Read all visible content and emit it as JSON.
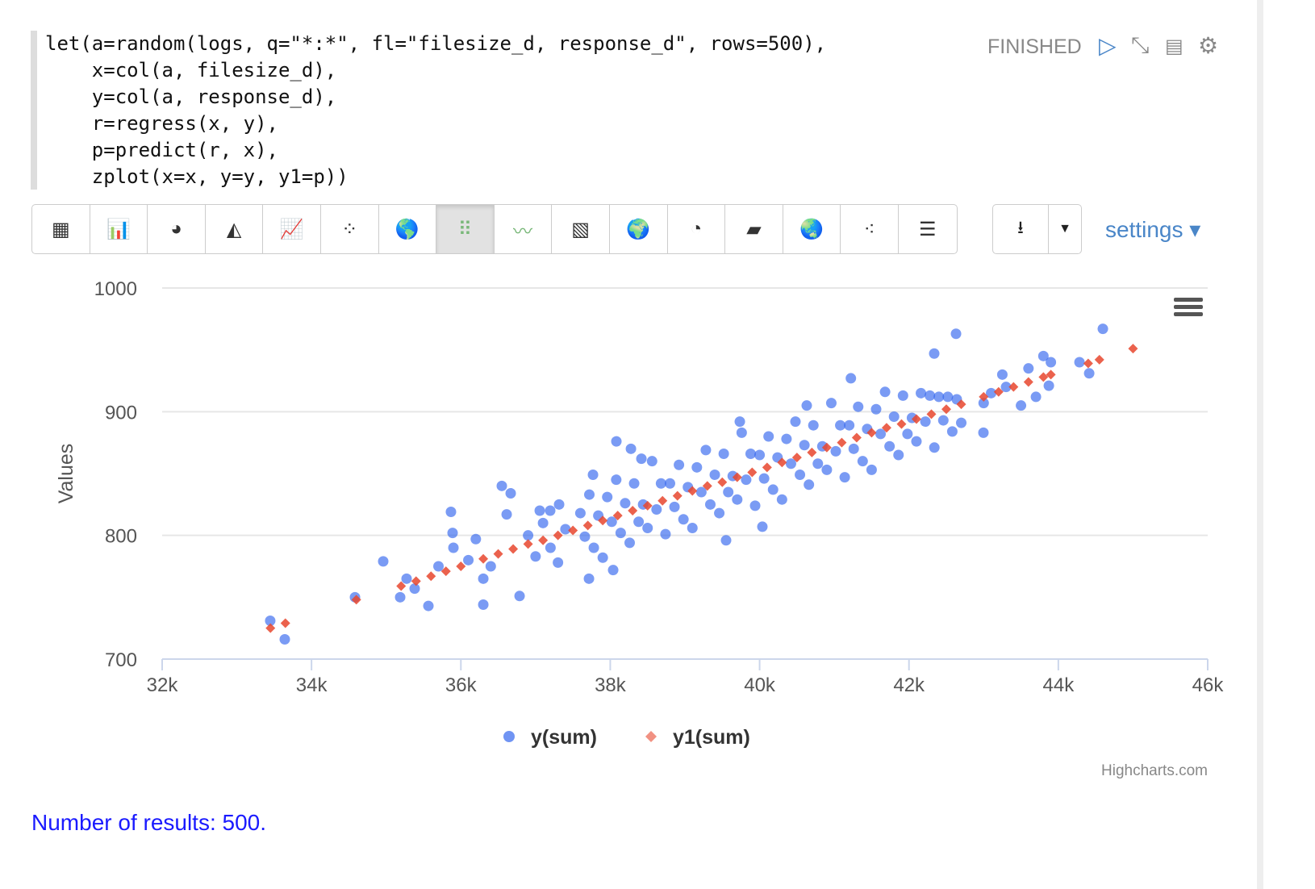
{
  "code": "let(a=random(logs, q=\"*:*\", fl=\"filesize_d, response_d\", rows=500),\n    x=col(a, filesize_d),\n    y=col(a, response_d),\n    r=regress(x, y),\n    p=predict(r, x),\n    zplot(x=x, y=y, y1=p))",
  "status": "FINISHED",
  "paragraph_icons": [
    "play-icon",
    "collapse-icon",
    "book-icon",
    "gear-icon"
  ],
  "toolbar": {
    "active_index": 7,
    "buttons": [
      "table-icon",
      "bar-chart-icon",
      "pie-chart-icon",
      "area-chart-icon",
      "line-chart-icon",
      "scatter-chart-icon",
      "globe-orange-icon",
      "scatter-matrix-icon",
      "multi-line-icon",
      "heatmap-icon",
      "globe-icon",
      "pie-color-icon",
      "stacked-area-icon",
      "world-icon",
      "bubble-icon",
      "timeline-icon"
    ]
  },
  "download": {
    "icon": "download-icon",
    "caret": "caret-down-icon"
  },
  "settings_label": "settings ▾",
  "results": "Number of results: 500.",
  "chart_data": {
    "type": "scatter",
    "ylabel": "Values",
    "xlabel": "",
    "xlim": [
      32000,
      46000
    ],
    "ylim": [
      700,
      1000
    ],
    "xticks": [
      "32k",
      "34k",
      "36k",
      "38k",
      "40k",
      "42k",
      "44k",
      "46k"
    ],
    "yticks": [
      "700",
      "800",
      "900",
      "1000"
    ],
    "grid": true,
    "legend": "bottom-center",
    "credits": "Highcharts.com",
    "colors": {
      "y": "#3366ee",
      "y1": "#e8472e"
    },
    "series": [
      {
        "name": "y(sum)",
        "marker": "circle",
        "points": [
          [
            33447,
            731
          ],
          [
            33642,
            716
          ],
          [
            34582,
            750
          ],
          [
            34960,
            779
          ],
          [
            35187,
            750
          ],
          [
            35273,
            765
          ],
          [
            35381,
            757
          ],
          [
            35565,
            743
          ],
          [
            35867,
            819
          ],
          [
            35889,
            802
          ],
          [
            36300,
            744
          ],
          [
            36300,
            765
          ],
          [
            36548,
            840
          ],
          [
            36667,
            834
          ],
          [
            36613,
            817
          ],
          [
            36786,
            751
          ],
          [
            37056,
            820
          ],
          [
            37196,
            820
          ],
          [
            37315,
            825
          ],
          [
            37769,
            849
          ],
          [
            38082,
            876
          ],
          [
            38277,
            870
          ],
          [
            38417,
            862
          ],
          [
            37715,
            765
          ],
          [
            38039,
            772
          ],
          [
            40037,
            807
          ],
          [
            39551,
            796
          ],
          [
            42630,
            963
          ],
          [
            44596,
            967
          ],
          [
            44413,
            931
          ],
          [
            44283,
            940
          ],
          [
            43873,
            921
          ],
          [
            42338,
            947
          ],
          [
            42997,
            883
          ],
          [
            41222,
            927
          ],
          [
            40631,
            905
          ],
          [
            39735,
            892
          ],
          [
            36900,
            800
          ],
          [
            37000,
            783
          ],
          [
            37100,
            810
          ],
          [
            37200,
            790
          ],
          [
            37300,
            778
          ],
          [
            37400,
            805
          ],
          [
            36200,
            797
          ],
          [
            36400,
            775
          ],
          [
            35700,
            775
          ],
          [
            35900,
            790
          ],
          [
            36100,
            780
          ],
          [
            43000,
            907
          ],
          [
            43100,
            915
          ],
          [
            43300,
            920
          ],
          [
            43500,
            905
          ],
          [
            43600,
            935
          ],
          [
            43700,
            912
          ],
          [
            43800,
            945
          ],
          [
            43900,
            940
          ],
          [
            43250,
            930
          ],
          [
            37600,
            818
          ],
          [
            37660,
            799
          ],
          [
            37720,
            833
          ],
          [
            37780,
            790
          ],
          [
            37840,
            816
          ],
          [
            37900,
            782
          ],
          [
            37960,
            831
          ],
          [
            38020,
            811
          ],
          [
            38080,
            845
          ],
          [
            38140,
            802
          ],
          [
            38200,
            826
          ],
          [
            38260,
            794
          ],
          [
            38320,
            842
          ],
          [
            38380,
            811
          ],
          [
            38440,
            825
          ],
          [
            38500,
            806
          ],
          [
            38560,
            860
          ],
          [
            38620,
            821
          ],
          [
            38680,
            842
          ],
          [
            38740,
            801
          ],
          [
            38800,
            842
          ],
          [
            38860,
            823
          ],
          [
            38920,
            857
          ],
          [
            38980,
            813
          ],
          [
            39040,
            839
          ],
          [
            39100,
            806
          ],
          [
            39160,
            855
          ],
          [
            39220,
            835
          ],
          [
            39280,
            869
          ],
          [
            39340,
            825
          ],
          [
            39400,
            849
          ],
          [
            39460,
            818
          ],
          [
            39520,
            866
          ],
          [
            39580,
            835
          ],
          [
            39640,
            848
          ],
          [
            39700,
            829
          ],
          [
            39760,
            883
          ],
          [
            39820,
            845
          ],
          [
            39880,
            866
          ],
          [
            39940,
            824
          ],
          [
            40000,
            865
          ],
          [
            40060,
            846
          ],
          [
            40120,
            880
          ],
          [
            40180,
            837
          ],
          [
            40240,
            863
          ],
          [
            40300,
            829
          ],
          [
            40360,
            878
          ],
          [
            40420,
            858
          ],
          [
            40480,
            892
          ],
          [
            40540,
            849
          ],
          [
            40600,
            873
          ],
          [
            40660,
            841
          ],
          [
            40720,
            889
          ],
          [
            40780,
            858
          ],
          [
            40840,
            872
          ],
          [
            40900,
            853
          ],
          [
            40960,
            907
          ],
          [
            41020,
            868
          ],
          [
            41080,
            889
          ],
          [
            41140,
            847
          ],
          [
            41200,
            889
          ],
          [
            41260,
            870
          ],
          [
            41320,
            904
          ],
          [
            41380,
            860
          ],
          [
            41440,
            886
          ],
          [
            41500,
            853
          ],
          [
            41560,
            902
          ],
          [
            41620,
            882
          ],
          [
            41680,
            916
          ],
          [
            41740,
            872
          ],
          [
            41800,
            896
          ],
          [
            41860,
            865
          ],
          [
            41920,
            913
          ],
          [
            41980,
            882
          ],
          [
            42040,
            895
          ],
          [
            42100,
            876
          ],
          [
            42160,
            915
          ],
          [
            42220,
            892
          ],
          [
            42280,
            913
          ],
          [
            42340,
            871
          ],
          [
            42400,
            912
          ],
          [
            42460,
            893
          ],
          [
            42520,
            912
          ],
          [
            42580,
            884
          ],
          [
            42640,
            910
          ],
          [
            42700,
            891
          ]
        ]
      },
      {
        "name": "y1(sum)",
        "marker": "diamond",
        "points": [
          [
            33450,
            725
          ],
          [
            33650,
            729
          ],
          [
            34600,
            748
          ],
          [
            35200,
            759
          ],
          [
            35400,
            763
          ],
          [
            35600,
            767
          ],
          [
            35800,
            771
          ],
          [
            36000,
            775
          ],
          [
            36300,
            781
          ],
          [
            36500,
            785
          ],
          [
            36700,
            789
          ],
          [
            36900,
            793
          ],
          [
            37100,
            796
          ],
          [
            37300,
            800
          ],
          [
            37500,
            804
          ],
          [
            37700,
            808
          ],
          [
            37900,
            812
          ],
          [
            38100,
            816
          ],
          [
            38300,
            820
          ],
          [
            38500,
            824
          ],
          [
            38700,
            828
          ],
          [
            38900,
            832
          ],
          [
            39100,
            836
          ],
          [
            39300,
            840
          ],
          [
            39500,
            843
          ],
          [
            39700,
            847
          ],
          [
            39900,
            851
          ],
          [
            40100,
            855
          ],
          [
            40300,
            859
          ],
          [
            40500,
            863
          ],
          [
            40700,
            867
          ],
          [
            40900,
            871
          ],
          [
            41100,
            875
          ],
          [
            41300,
            879
          ],
          [
            41500,
            883
          ],
          [
            41700,
            887
          ],
          [
            41900,
            890
          ],
          [
            42100,
            894
          ],
          [
            42300,
            898
          ],
          [
            42500,
            902
          ],
          [
            42700,
            906
          ],
          [
            43000,
            912
          ],
          [
            43200,
            916
          ],
          [
            43400,
            920
          ],
          [
            43600,
            924
          ],
          [
            43800,
            928
          ],
          [
            43900,
            930
          ],
          [
            44400,
            939
          ],
          [
            44550,
            942
          ],
          [
            45000,
            951
          ]
        ]
      }
    ]
  }
}
